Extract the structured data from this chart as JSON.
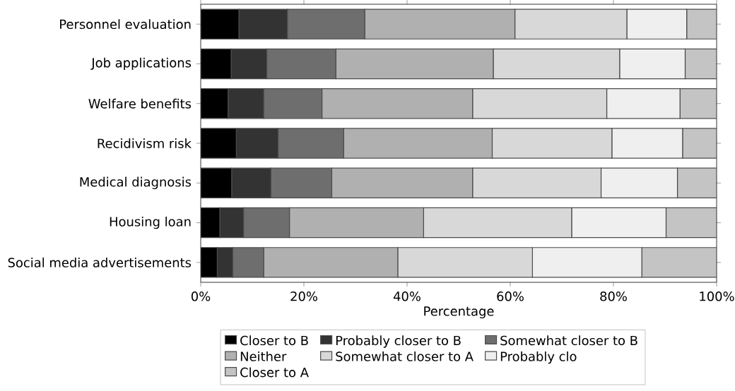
{
  "chart_data": {
    "type": "bar",
    "orientation": "horizontal",
    "stacked": true,
    "xlabel": "Percentage",
    "categories": [
      "Personnel evaluation",
      "Job applications",
      "Welfare benefits",
      "Recidivism risk",
      "Medical diagnosis",
      "Housing loan",
      "Social media advertisements"
    ],
    "series": [
      {
        "name": "Closer to B",
        "color": "#000000",
        "values": [
          7.4,
          5.9,
          5.3,
          6.9,
          6.0,
          3.7,
          3.2
        ]
      },
      {
        "name": "Probably closer to B",
        "color": "#333333",
        "values": [
          9.4,
          6.9,
          6.9,
          8.1,
          7.6,
          4.6,
          3.0
        ]
      },
      {
        "name": "Somewhat closer to B",
        "color": "#6e6e6e",
        "values": [
          15.0,
          13.4,
          11.3,
          12.7,
          11.8,
          8.9,
          6.0
        ]
      },
      {
        "name": "Neither",
        "color": "#b0b0b0",
        "values": [
          29.1,
          30.5,
          29.2,
          28.8,
          27.3,
          26.0,
          26.0
        ]
      },
      {
        "name": "Somewhat closer to A",
        "color": "#d8d8d8",
        "values": [
          21.7,
          24.5,
          26.0,
          23.2,
          24.9,
          28.7,
          26.1
        ]
      },
      {
        "name": "Probably clo",
        "color": "#efefef",
        "values": [
          11.6,
          12.7,
          14.2,
          13.7,
          14.8,
          18.3,
          21.2
        ]
      },
      {
        "name": "Closer to A",
        "color": "#c4c4c4",
        "values": [
          5.8,
          6.1,
          7.1,
          6.6,
          7.6,
          9.8,
          14.5
        ]
      }
    ],
    "xlim": [
      0,
      100
    ],
    "xticks": [
      {
        "value": 0,
        "label": "0%"
      },
      {
        "value": 20,
        "label": "20%"
      },
      {
        "value": 40,
        "label": "40%"
      },
      {
        "value": 60,
        "label": "60%"
      },
      {
        "value": 80,
        "label": "80%"
      },
      {
        "value": 100,
        "label": "100%"
      }
    ],
    "legend": "bottom"
  }
}
